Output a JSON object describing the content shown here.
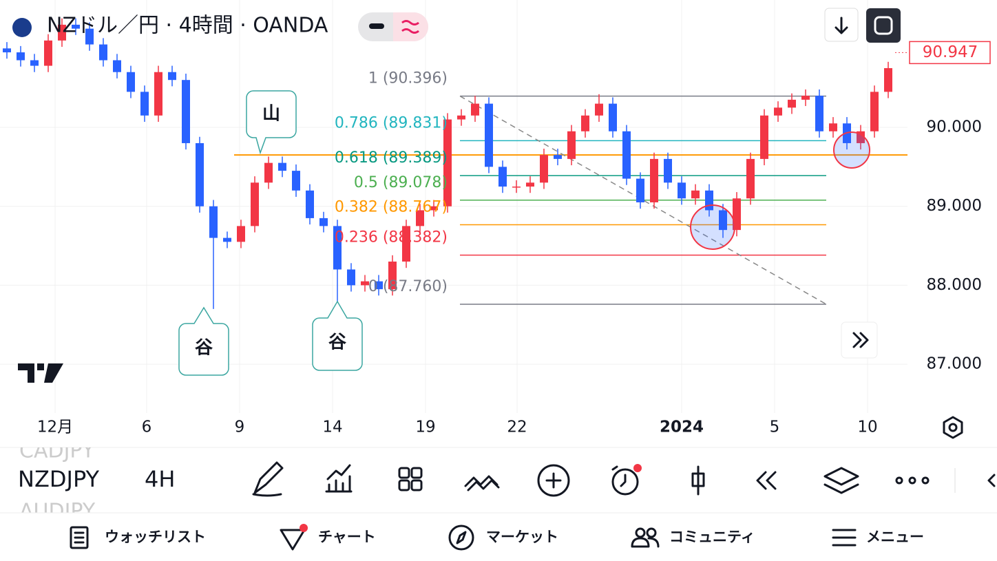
{
  "header": {
    "title": "NZドル／円 · 4時間 · OANDA"
  },
  "chart_data": {
    "type": "candlestick",
    "series": {
      "up_color": "#f23645",
      "down_color": "#2962ff",
      "open": [
        91.0,
        90.95,
        90.85,
        90.78,
        91.1,
        91.3,
        91.25,
        91.05,
        90.85,
        90.7,
        90.45,
        90.15,
        90.7,
        90.6,
        89.8,
        89.0,
        88.6,
        88.55,
        88.75,
        89.3,
        89.55,
        89.45,
        89.2,
        88.85,
        88.75,
        88.2,
        88.0,
        88.05,
        87.95,
        88.3,
        88.75,
        88.95,
        89.0,
        90.1,
        90.15,
        90.3,
        89.5,
        89.25,
        89.25,
        89.3,
        89.65,
        89.6,
        89.95,
        90.15,
        90.3,
        89.95,
        89.35,
        89.05,
        89.6,
        89.3,
        89.1,
        89.2,
        88.95,
        88.7,
        89.1,
        89.6,
        90.15,
        90.25,
        90.35,
        90.4,
        89.95,
        90.05,
        89.8,
        89.95,
        90.45
      ],
      "high": [
        91.08,
        91.03,
        90.93,
        91.18,
        91.38,
        91.38,
        91.33,
        91.13,
        90.93,
        90.78,
        90.53,
        90.78,
        90.78,
        90.68,
        89.88,
        89.08,
        88.68,
        88.83,
        89.38,
        89.63,
        89.63,
        89.53,
        89.28,
        88.93,
        88.83,
        88.28,
        88.13,
        88.13,
        88.38,
        88.83,
        89.03,
        89.08,
        90.18,
        90.23,
        90.4,
        90.38,
        89.58,
        89.33,
        89.38,
        89.73,
        89.73,
        90.03,
        90.23,
        90.42,
        90.38,
        90.03,
        89.43,
        89.68,
        89.68,
        89.38,
        89.28,
        89.28,
        89.03,
        89.18,
        89.68,
        90.23,
        90.33,
        90.43,
        90.48,
        90.48,
        90.13,
        90.13,
        90.03,
        90.53,
        90.83
      ],
      "low": [
        90.87,
        90.77,
        90.7,
        90.7,
        91.02,
        91.17,
        90.97,
        90.77,
        90.62,
        90.37,
        90.07,
        90.07,
        90.52,
        89.72,
        88.92,
        87.7,
        88.47,
        88.47,
        88.67,
        89.22,
        89.37,
        89.12,
        88.77,
        88.67,
        87.75,
        87.92,
        87.92,
        87.87,
        87.87,
        88.22,
        88.67,
        88.87,
        88.92,
        90.02,
        90.07,
        89.42,
        89.17,
        89.17,
        89.17,
        89.22,
        89.52,
        89.52,
        89.87,
        90.07,
        89.87,
        89.27,
        88.97,
        88.97,
        89.22,
        89.02,
        89.02,
        88.87,
        88.6,
        88.62,
        89.02,
        89.52,
        90.07,
        90.17,
        90.27,
        89.87,
        89.87,
        89.72,
        89.72,
        89.87,
        90.37
      ],
      "close": [
        90.95,
        90.85,
        90.78,
        91.1,
        91.3,
        91.25,
        91.05,
        90.85,
        90.7,
        90.45,
        90.15,
        90.7,
        90.6,
        89.8,
        89.0,
        88.6,
        88.55,
        88.75,
        89.3,
        89.55,
        89.45,
        89.2,
        88.85,
        88.75,
        88.2,
        88.0,
        88.05,
        87.95,
        88.3,
        88.75,
        88.95,
        89.0,
        90.1,
        90.15,
        90.3,
        89.5,
        89.25,
        89.25,
        89.3,
        89.65,
        89.6,
        89.95,
        90.15,
        90.3,
        89.95,
        89.35,
        89.05,
        89.6,
        89.3,
        89.1,
        89.2,
        88.95,
        88.7,
        89.1,
        89.6,
        90.15,
        90.25,
        90.35,
        90.4,
        89.95,
        90.05,
        89.8,
        89.95,
        90.45,
        90.75
      ]
    },
    "ylim": [
      86.382,
      91.613
    ],
    "xlim": [
      0,
      65.75
    ],
    "yticks": [
      {
        "value": 90,
        "label": "90.000"
      },
      {
        "value": 89,
        "label": "89.000"
      },
      {
        "value": 88,
        "label": "88.000"
      },
      {
        "value": 87,
        "label": "87.000"
      }
    ],
    "xticks": [
      {
        "value": 4,
        "label": "12月"
      },
      {
        "value": 10.65,
        "label": "6"
      },
      {
        "value": 17.4,
        "label": "9"
      },
      {
        "value": 24.15,
        "label": "14"
      },
      {
        "value": 30.9,
        "label": "19"
      },
      {
        "value": 37.55,
        "label": "22"
      },
      {
        "value": 49.5,
        "label": "2024"
      },
      {
        "value": 56.25,
        "label": "5"
      },
      {
        "value": 63,
        "label": "10"
      }
    ],
    "grid": true,
    "last_price": 90.947,
    "hline": {
      "value": 89.65,
      "color": "#ff9800"
    },
    "fib": {
      "x": [
        33.4,
        60
      ],
      "levels": [
        {
          "value": 90.396,
          "label": "1 (90.396)",
          "color": "#787b86"
        },
        {
          "value": 89.831,
          "label": "0.786 (89.831)",
          "color": "#22b5bf"
        },
        {
          "value": 89.389,
          "label": "0.618 (89.389)",
          "color": "#089981"
        },
        {
          "value": 89.078,
          "label": "0.5 (89.078)",
          "color": "#4caf50"
        },
        {
          "value": 88.767,
          "label": "0.382 (88.767)",
          "color": "#ff9800"
        },
        {
          "value": 88.382,
          "label": "0.236 (88.382)",
          "color": "#f23645"
        },
        {
          "value": 87.76,
          "label": "0 (87.760)",
          "color": "#787b86"
        }
      ]
    },
    "annotations": [
      "山",
      "谷",
      "谷"
    ]
  },
  "toolbar": {
    "prev_symbol": "CADJPY",
    "symbol": "NZDJPY",
    "interval": "4H",
    "next_symbol": "AUDJPY"
  },
  "nav": [
    "ウォッチリスト",
    "チャート",
    "マーケット",
    "コミュニティ",
    "メニュー"
  ]
}
